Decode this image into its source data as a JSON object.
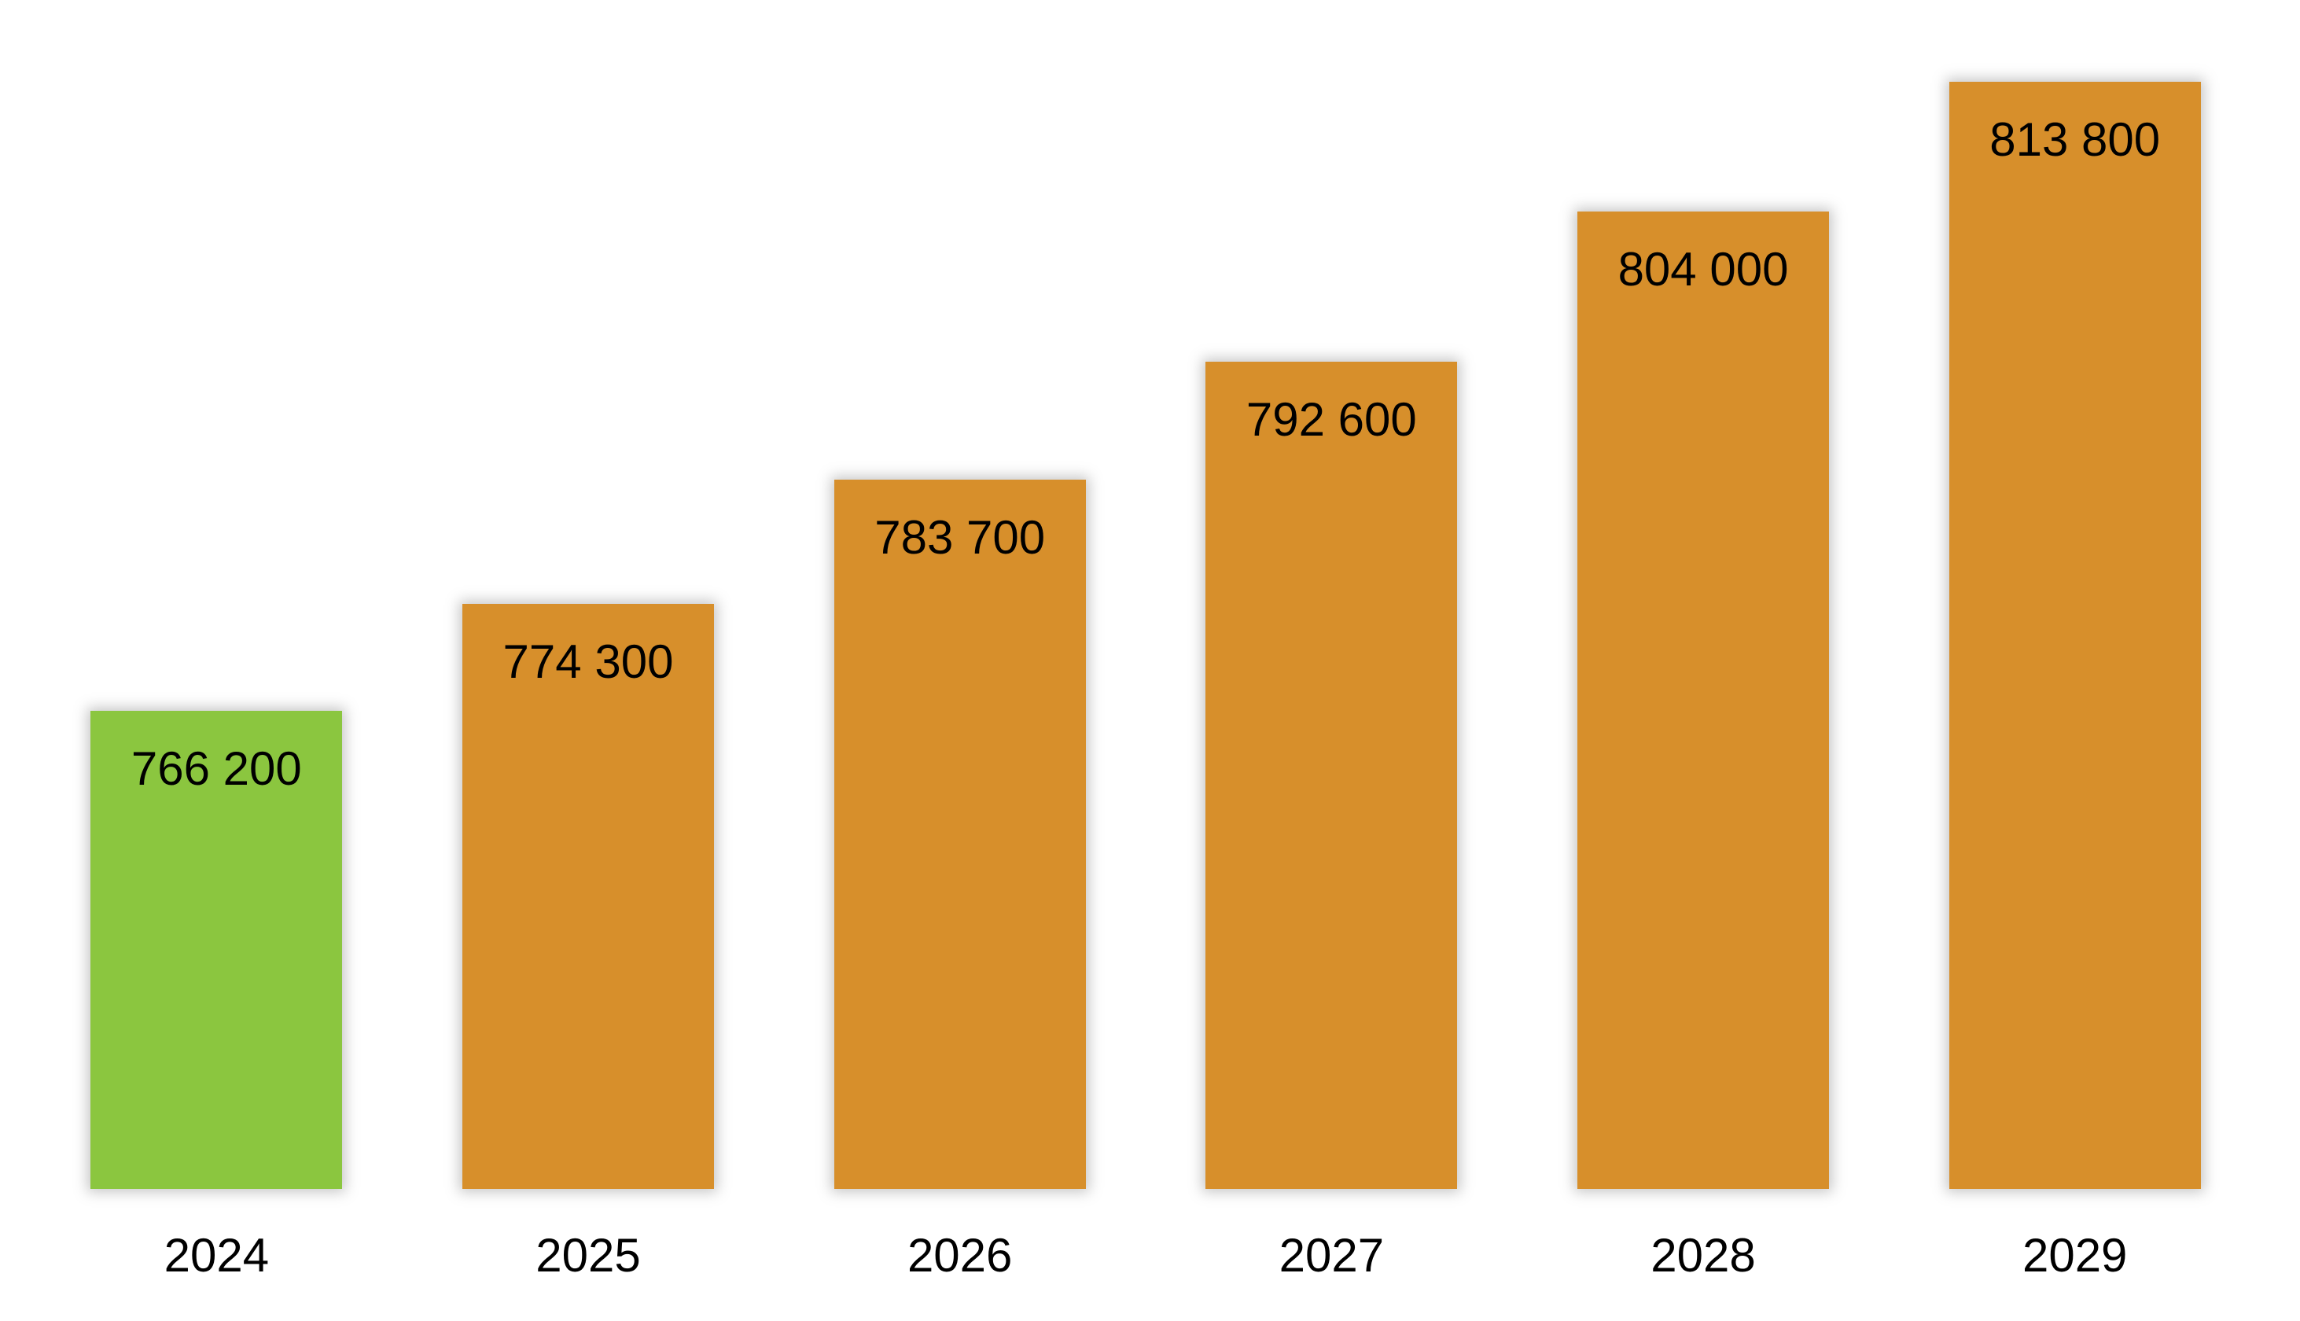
{
  "chart_data": {
    "type": "bar",
    "categories": [
      "2024",
      "2025",
      "2026",
      "2027",
      "2028",
      "2029"
    ],
    "values": [
      766200,
      774300,
      783700,
      792600,
      804000,
      813800
    ],
    "value_labels": [
      "766 200",
      "774 300",
      "783 700",
      "792 600",
      "804 000",
      "813 800"
    ],
    "title": "",
    "xlabel": "",
    "ylabel": "",
    "ylim": [
      730000,
      820000
    ],
    "grid": false,
    "legend": false,
    "axis_lines": false,
    "value_label_position": "inside-top",
    "colors": {
      "first_bar": "#8BC63F",
      "other_bars": "#D78F2B",
      "label_text": "#000000",
      "background": "#FFFFFF"
    },
    "bar_colors": [
      "#8BC63F",
      "#D78F2B",
      "#D78F2B",
      "#D78F2B",
      "#D78F2B",
      "#D78F2B"
    ]
  }
}
